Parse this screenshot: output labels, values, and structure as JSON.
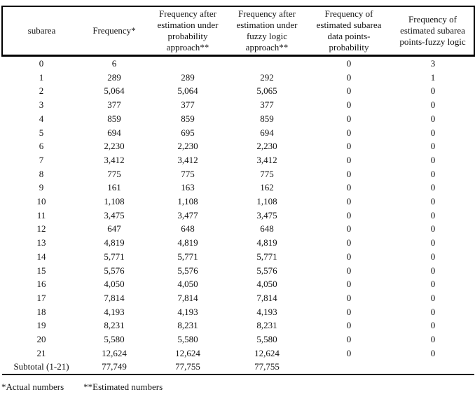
{
  "table": {
    "columns": [
      "subarea",
      "Frequency*",
      "Frequency after estimation under probability approach**",
      "Frequency after estimation under fuzzy logic approach**",
      "Frequency of estimated subarea data points-probability",
      "Frequency of estimated subarea points-fuzzy logic"
    ],
    "rows": [
      [
        "0",
        "6",
        "",
        "",
        "0",
        "3"
      ],
      [
        "1",
        "289",
        "289",
        "292",
        "0",
        "1"
      ],
      [
        "2",
        "5,064",
        "5,064",
        "5,065",
        "0",
        "0"
      ],
      [
        "3",
        "377",
        "377",
        "377",
        "0",
        "0"
      ],
      [
        "4",
        "859",
        "859",
        "859",
        "0",
        "0"
      ],
      [
        "5",
        "694",
        "695",
        "694",
        "0",
        "0"
      ],
      [
        "6",
        "2,230",
        "2,230",
        "2,230",
        "0",
        "0"
      ],
      [
        "7",
        "3,412",
        "3,412",
        "3,412",
        "0",
        "0"
      ],
      [
        "8",
        "775",
        "775",
        "775",
        "0",
        "0"
      ],
      [
        "9",
        "161",
        "163",
        "162",
        "0",
        "0"
      ],
      [
        "10",
        "1,108",
        "1,108",
        "1,108",
        "0",
        "0"
      ],
      [
        "11",
        "3,475",
        "3,477",
        "3,475",
        "0",
        "0"
      ],
      [
        "12",
        "647",
        "648",
        "648",
        "0",
        "0"
      ],
      [
        "13",
        "4,819",
        "4,819",
        "4,819",
        "0",
        "0"
      ],
      [
        "14",
        "5,771",
        "5,771",
        "5,771",
        "0",
        "0"
      ],
      [
        "15",
        "5,576",
        "5,576",
        "5,576",
        "0",
        "0"
      ],
      [
        "16",
        "4,050",
        "4,050",
        "4,050",
        "0",
        "0"
      ],
      [
        "17",
        "7,814",
        "7,814",
        "7,814",
        "0",
        "0"
      ],
      [
        "18",
        "4,193",
        "4,193",
        "4,193",
        "0",
        "0"
      ],
      [
        "19",
        "8,231",
        "8,231",
        "8,231",
        "0",
        "0"
      ],
      [
        "20",
        "5,580",
        "5,580",
        "5,580",
        "0",
        "0"
      ],
      [
        "21",
        "12,624",
        "12,624",
        "12,624",
        "0",
        "0"
      ],
      [
        "Subtotal (1-21)",
        "77,749",
        "77,755",
        "77,755",
        "",
        ""
      ]
    ]
  },
  "footnotes": {
    "actual": "*Actual numbers",
    "estimated": "**Estimated numbers"
  },
  "colors": {
    "background": "#ffffff",
    "text": "#121212",
    "rule": "#000000"
  }
}
